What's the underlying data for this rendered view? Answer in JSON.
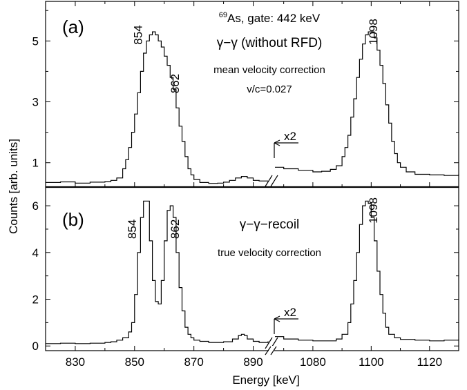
{
  "chart_data": {
    "type": "line",
    "xlabel": "Energy",
    "xlabel_unit": "[keV]",
    "ylabel": "Counts [arb. units]",
    "x_break": {
      "left_range": [
        820,
        895
      ],
      "right_range": [
        1067,
        1130
      ]
    },
    "x_ticks_left": [
      830,
      850,
      870,
      890
    ],
    "x_ticks_right": [
      1080,
      1100,
      1120
    ],
    "panels": [
      {
        "id": "a",
        "panel_label": "(a)",
        "title_superscript": "69",
        "title": "As, gate: 442 keV",
        "subtitle": "γ−γ (without RFD)",
        "annotation_1": "mean velocity correction",
        "annotation_2": "v/c=0.027",
        "scale_label": "x2",
        "ylim": [
          0.2,
          6.3
        ],
        "y_ticks": [
          1,
          3,
          5
        ],
        "peak_labels": [
          {
            "text": "854",
            "x": 852.5,
            "y": 5.2
          },
          {
            "text": "862",
            "x": 865,
            "y": 3.6
          },
          {
            "text": "1098",
            "x": 1102,
            "y": 5.3
          }
        ],
        "series": [
          {
            "segment": "left",
            "x": [
              820,
              825,
              830,
              835,
              840,
              842,
              844,
              846,
              847,
              848,
              849,
              850,
              851,
              852,
              853,
              854,
              855,
              856,
              857,
              858,
              859,
              860,
              861,
              862,
              863,
              864,
              865,
              866,
              867,
              868,
              869,
              870,
              872,
              875,
              878,
              880,
              882,
              884,
              886,
              888,
              890,
              892,
              895
            ],
            "y": [
              0.35,
              0.37,
              0.33,
              0.36,
              0.38,
              0.42,
              0.5,
              0.8,
              1.1,
              1.5,
              2.0,
              2.6,
              3.3,
              4.0,
              4.6,
              5.0,
              5.2,
              5.3,
              5.2,
              5.0,
              4.8,
              4.5,
              4.2,
              3.8,
              3.4,
              2.8,
              2.2,
              1.7,
              1.2,
              0.8,
              0.6,
              0.45,
              0.35,
              0.32,
              0.33,
              0.36,
              0.42,
              0.5,
              0.55,
              0.5,
              0.42,
              0.4,
              0.4
            ]
          },
          {
            "segment": "right",
            "x": [
              1067,
              1070,
              1075,
              1080,
              1083,
              1086,
              1088,
              1090,
              1091,
              1092,
              1093,
              1094,
              1095,
              1096,
              1097,
              1098,
              1099,
              1100,
              1101,
              1102,
              1103,
              1104,
              1105,
              1106,
              1107,
              1108,
              1109,
              1110,
              1112,
              1115,
              1120,
              1125,
              1130
            ],
            "y": [
              0.85,
              0.8,
              0.75,
              0.7,
              0.72,
              0.78,
              0.9,
              1.2,
              1.5,
              1.9,
              2.5,
              3.1,
              3.8,
              4.4,
              4.9,
              5.2,
              5.3,
              5.3,
              5.1,
              4.7,
              4.2,
              3.6,
              2.9,
              2.3,
              1.7,
              1.3,
              1.0,
              0.85,
              0.7,
              0.62,
              0.6,
              0.58,
              0.62
            ]
          }
        ]
      },
      {
        "id": "b",
        "panel_label": "(b)",
        "subtitle": "γ−γ−recoil",
        "annotation_1": "true velocity correction",
        "scale_label": "x2",
        "ylim": [
          -0.2,
          6.8
        ],
        "y_ticks": [
          0,
          2,
          4,
          6
        ],
        "peak_labels": [
          {
            "text": "854",
            "x": 850.5,
            "y": 5.0
          },
          {
            "text": "862",
            "x": 865,
            "y": 5.0
          },
          {
            "text": "1098",
            "x": 1102,
            "y": 5.8
          }
        ],
        "series": [
          {
            "segment": "left",
            "x": [
              820,
              825,
              830,
              835,
              840,
              842,
              844,
              846,
              848,
              849,
              850,
              851,
              852,
              853,
              854,
              855,
              856,
              857,
              858,
              859,
              860,
              861,
              862,
              863,
              864,
              865,
              866,
              867,
              868,
              869,
              870,
              872,
              875,
              880,
              883,
              885,
              886,
              887,
              888,
              890,
              892,
              895
            ],
            "y": [
              0.1,
              0.12,
              0.1,
              0.12,
              0.15,
              0.18,
              0.25,
              0.35,
              0.6,
              1.0,
              2.2,
              4.0,
              5.5,
              6.2,
              6.2,
              4.5,
              2.8,
              1.9,
              1.8,
              2.8,
              4.5,
              5.8,
              6.0,
              5.5,
              4.0,
              2.5,
              1.5,
              0.8,
              0.5,
              0.35,
              0.25,
              0.2,
              0.15,
              0.18,
              0.3,
              0.45,
              0.5,
              0.45,
              0.3,
              0.2,
              0.15,
              0.2
            ]
          },
          {
            "segment": "right",
            "x": [
              1067,
              1070,
              1075,
              1080,
              1085,
              1088,
              1090,
              1092,
              1093,
              1094,
              1095,
              1096,
              1097,
              1098,
              1099,
              1100,
              1101,
              1102,
              1103,
              1104,
              1105,
              1106,
              1108,
              1110,
              1115,
              1120,
              1125,
              1130
            ],
            "y": [
              0.4,
              0.3,
              0.25,
              0.22,
              0.22,
              0.3,
              0.5,
              1.0,
              1.8,
              2.8,
              4.0,
              5.2,
              6.0,
              6.2,
              6.1,
              5.5,
              4.5,
              3.2,
              2.2,
              1.4,
              0.8,
              0.5,
              0.35,
              0.28,
              0.25,
              0.22,
              0.25,
              0.28
            ]
          }
        ]
      }
    ]
  }
}
